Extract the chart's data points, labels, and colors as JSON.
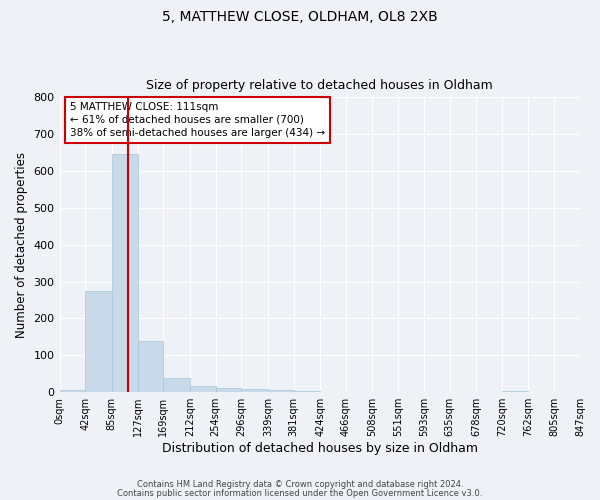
{
  "title": "5, MATTHEW CLOSE, OLDHAM, OL8 2XB",
  "subtitle": "Size of property relative to detached houses in Oldham",
  "xlabel": "Distribution of detached houses by size in Oldham",
  "ylabel": "Number of detached properties",
  "bar_color": "#c8daea",
  "bar_edge_color": "#a8c4d8",
  "bg_color": "#eef2f7",
  "grid_color": "#ffffff",
  "bin_edges": [
    0,
    42,
    85,
    127,
    169,
    212,
    254,
    296,
    339,
    381,
    424,
    466,
    508,
    551,
    593,
    635,
    678,
    720,
    762,
    805,
    847
  ],
  "bin_labels": [
    "0sqm",
    "42sqm",
    "85sqm",
    "127sqm",
    "169sqm",
    "212sqm",
    "254sqm",
    "296sqm",
    "339sqm",
    "381sqm",
    "424sqm",
    "466sqm",
    "508sqm",
    "551sqm",
    "593sqm",
    "635sqm",
    "678sqm",
    "720sqm",
    "762sqm",
    "805sqm",
    "847sqm"
  ],
  "counts": [
    5,
    275,
    645,
    140,
    38,
    18,
    12,
    8,
    7,
    2,
    0,
    0,
    0,
    0,
    0,
    0,
    0,
    3,
    0,
    0
  ],
  "property_value": 111,
  "vline_color": "#cc0000",
  "annotation_line1": "5 MATTHEW CLOSE: 111sqm",
  "annotation_line2": "← 61% of detached houses are smaller (700)",
  "annotation_line3": "38% of semi-detached houses are larger (434) →",
  "annotation_box_color": "#ffffff",
  "annotation_box_edge": "#cc0000",
  "ylim": [
    0,
    800
  ],
  "yticks": [
    0,
    100,
    200,
    300,
    400,
    500,
    600,
    700,
    800
  ],
  "footer1": "Contains HM Land Registry data © Crown copyright and database right 2024.",
  "footer2": "Contains public sector information licensed under the Open Government Licence v3.0."
}
